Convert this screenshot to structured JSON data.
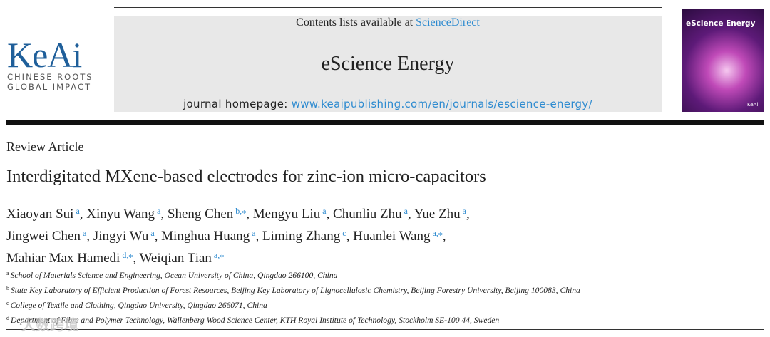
{
  "header": {
    "logo_name": "KeAi",
    "logo_tagline": [
      "CHINESE ROOTS",
      "GLOBAL IMPACT"
    ],
    "contents_label": "Contents lists available at",
    "contents_link": "ScienceDirect",
    "journal": "eScience Energy",
    "homepage_label": "journal homepage:",
    "homepage_url": "www.keaipublishing.com/en/journals/escience-energy/",
    "cover_title": "eScience Energy",
    "cover_publisher": "KeAi"
  },
  "article_type": "Review Article",
  "title": "Interdigitated MXene-based electrodes for zinc-ion micro-capacitors",
  "authors": {
    "separator": ",",
    "lines": [
      [
        {
          "name": "Xiaoyan Sui",
          "sup": "a"
        },
        {
          "name": "Xinyu Wang",
          "sup": "a"
        },
        {
          "name": "Sheng Chen",
          "sup": "b,⁎"
        },
        {
          "name": "Mengyu Liu",
          "sup": "a"
        },
        {
          "name": "Chunliu Zhu",
          "sup": "a"
        },
        {
          "name": "Yue Zhu",
          "sup": "a"
        }
      ],
      [
        {
          "name": "Jingwei Chen",
          "sup": "a"
        },
        {
          "name": "Jingyi Wu",
          "sup": "a"
        },
        {
          "name": "Minghua Huang",
          "sup": "a"
        },
        {
          "name": "Liming Zhang",
          "sup": "c"
        },
        {
          "name": "Huanlei Wang",
          "sup": "a,⁎"
        }
      ],
      [
        {
          "name": "Mahiar Max Hamedi",
          "sup": "d,⁎"
        },
        {
          "name": "Weiqian Tian",
          "sup": "a,⁎"
        }
      ]
    ]
  },
  "affiliations": [
    {
      "label": "a",
      "text": "School of Materials Science and Engineering, Ocean University of China, Qingdao 266100, China"
    },
    {
      "label": "b",
      "text": "State Key Laboratory of Efficient Production of Forest Resources, Beijing Key Laboratory of Lignocellulosic Chemistry, Beijing Forestry University, Beijing 100083, China"
    },
    {
      "label": "c",
      "text": "College of Textile and Clothing, Qingdao University, Qingdao 266071, China"
    },
    {
      "label": "d",
      "text": "Department of Fibre and Polymer Technology, Wallenberg Wood Science Center, KTH Royal Institute of Technology, Stockholm SE-100 44, Sweden"
    }
  ],
  "watermark": "大数跨境"
}
